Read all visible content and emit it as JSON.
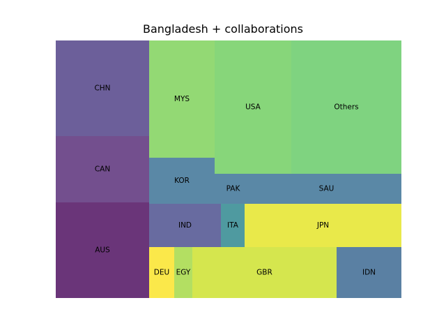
{
  "chart_data": {
    "type": "treemap",
    "title": "Bangladesh + collaborations",
    "cells": [
      {
        "label": "CHN",
        "color": "#6c5f9a"
      },
      {
        "label": "CAN",
        "color": "#734f8e"
      },
      {
        "label": "AUS",
        "color": "#6a3579"
      },
      {
        "label": "MYS",
        "color": "#93d974"
      },
      {
        "label": "USA",
        "color": "#87d67a"
      },
      {
        "label": "Others",
        "color": "#7fd380"
      },
      {
        "label": "KOR",
        "color": "#5a88a6"
      },
      {
        "label": "PAK",
        "color": "#5a88a6"
      },
      {
        "label": "SAU",
        "color": "#5a88a6"
      },
      {
        "label": "IND",
        "color": "#686ba0"
      },
      {
        "label": "ITA",
        "color": "#4f9aa0"
      },
      {
        "label": "JPN",
        "color": "#e9e94a"
      },
      {
        "label": "DEU",
        "color": "#fbe84a"
      },
      {
        "label": "EGY",
        "color": "#b3df62"
      },
      {
        "label": "GBR",
        "color": "#d5e64e"
      },
      {
        "label": "IDN",
        "color": "#5a80a3"
      }
    ]
  }
}
